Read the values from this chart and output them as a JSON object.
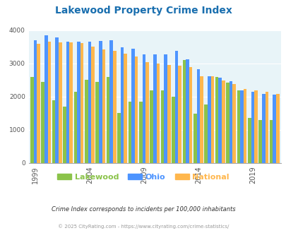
{
  "title": "Lakewood Property Crime Index",
  "title_color": "#1a6faf",
  "background_color": "#e8f4f8",
  "outer_background": "#ffffff",
  "years": [
    1999,
    2000,
    2001,
    2002,
    2003,
    2004,
    2005,
    2006,
    2007,
    2008,
    2009,
    2010,
    2011,
    2012,
    2013,
    2014,
    2015,
    2016,
    2017,
    2018,
    2019,
    2020,
    2021
  ],
  "lakewood": [
    2600,
    2450,
    1900,
    1700,
    2150,
    2500,
    2450,
    2600,
    1500,
    1850,
    1850,
    2180,
    2200,
    2000,
    3110,
    1480,
    1760,
    2600,
    2430,
    2180,
    1360,
    1300,
    1300
  ],
  "ohio": [
    3700,
    3850,
    3780,
    3650,
    3650,
    3650,
    3680,
    3700,
    3480,
    3450,
    3280,
    3270,
    3280,
    3380,
    3130,
    2820,
    2620,
    2580,
    2460,
    2190,
    2150,
    2080,
    2060
  ],
  "national": [
    3600,
    3650,
    3640,
    3630,
    3620,
    3510,
    3430,
    3380,
    3300,
    3220,
    3040,
    3000,
    2960,
    2940,
    2900,
    2620,
    2610,
    2480,
    2380,
    2230,
    2180,
    2140,
    2080
  ],
  "lakewood_color": "#8bc34a",
  "ohio_color": "#4d94ff",
  "national_color": "#ffb74d",
  "ylim": [
    0,
    4000
  ],
  "yticks": [
    0,
    1000,
    2000,
    3000,
    4000
  ],
  "xtick_years": [
    1999,
    2004,
    2009,
    2014,
    2019
  ],
  "footnote1": "Crime Index corresponds to incidents per 100,000 inhabitants",
  "footnote2": "© 2025 CityRating.com - https://www.cityrating.com/crime-statistics/",
  "footnote1_color": "#333333",
  "footnote2_color": "#999999",
  "legend_labels": [
    "Lakewood",
    "Ohio",
    "National"
  ]
}
